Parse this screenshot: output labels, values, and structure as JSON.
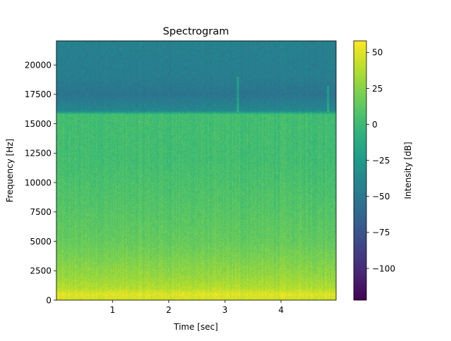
{
  "chart_data": {
    "type": "heatmap",
    "title": "Spectrogram",
    "xlabel": "Time [sec]",
    "ylabel": "Frequency [Hz]",
    "xlim": [
      0.0,
      4.98
    ],
    "ylim": [
      0,
      22050
    ],
    "x_ticks": [
      1,
      2,
      3,
      4
    ],
    "y_ticks": [
      0,
      2500,
      5000,
      7500,
      10000,
      12500,
      15000,
      17500,
      20000
    ],
    "colormap": "viridis",
    "colorbar": {
      "label": "Intensity [dB]",
      "range": [
        -122,
        58
      ],
      "ticks": [
        50,
        25,
        0,
        -25,
        -50,
        -75,
        -100
      ]
    },
    "intensity_profile_db": {
      "frequency_hz": [
        0,
        500,
        1000,
        2000,
        3500,
        5000,
        8000,
        12000,
        15800,
        16100,
        17500,
        19000,
        22050
      ],
      "level_db": [
        45,
        50,
        38,
        30,
        22,
        15,
        9,
        3,
        3,
        -38,
        -52,
        -45,
        -43
      ]
    },
    "features": [
      {
        "time_sec": 3.22,
        "frequency_range_hz": [
          16000,
          19000
        ],
        "note": "brief broadband streak"
      },
      {
        "time_sec": 4.83,
        "frequency_range_hz": [
          16000,
          18200
        ],
        "note": "faint streak"
      }
    ]
  }
}
